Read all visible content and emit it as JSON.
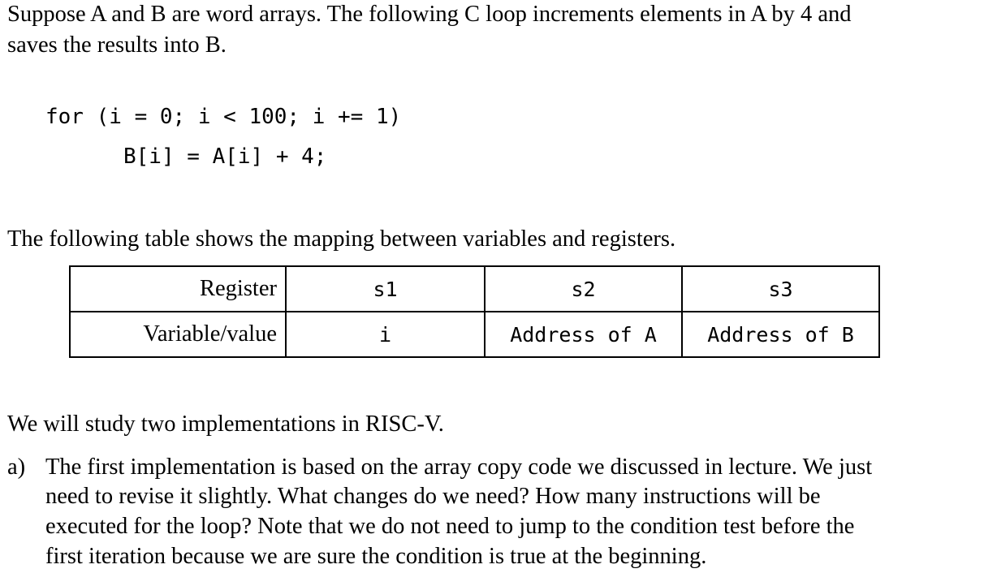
{
  "intro": {
    "line1": "Suppose A and B are word arrays. The following C loop increments elements in A by 4 and",
    "line2": "saves the results into B."
  },
  "code": {
    "line1": "for (i = 0; i < 100; i += 1)",
    "line2": "B[i] = A[i] + 4;"
  },
  "table_caption": "The following table shows the mapping between variables and registers.",
  "mapping_table": {
    "rows": [
      {
        "label": "Register",
        "cells": [
          "s1",
          "s2",
          "s3"
        ]
      },
      {
        "label": "Variable/value",
        "cells": [
          "i",
          "Address of A",
          "Address of B"
        ]
      }
    ]
  },
  "study_line": "We will study two implementations in RISC-V.",
  "question_a": {
    "marker": "a)",
    "lines": [
      "The first implementation is based on the array copy code we discussed in lecture. We just",
      "need to revise it slightly. What changes do we need? How many instructions will be",
      "executed for the loop? Note that we do not need to jump to the condition test before the",
      "first iteration because we are sure the condition is true at the beginning."
    ]
  }
}
